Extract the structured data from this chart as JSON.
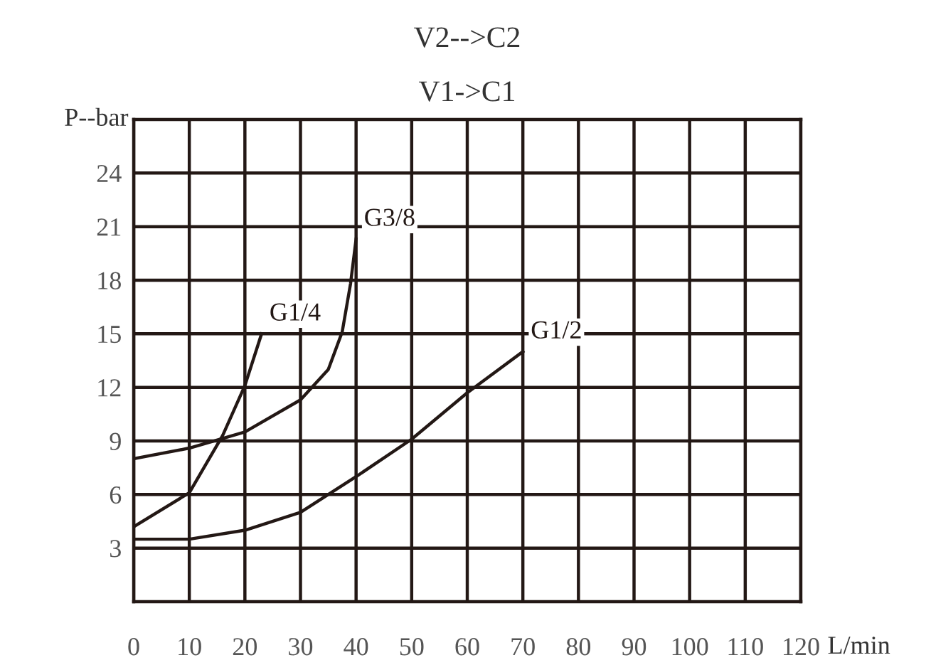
{
  "chart_data": {
    "type": "line",
    "title": "V2-->C2",
    "subtitle": "V1->C1",
    "xlabel": "L/min",
    "ylabel": "P--bar",
    "xlim": [
      0,
      120
    ],
    "xticks": [
      0,
      10,
      20,
      30,
      40,
      50,
      60,
      70,
      80,
      90,
      100,
      110,
      120
    ],
    "ylim": [
      0,
      27
    ],
    "yticks": [
      3,
      6,
      9,
      12,
      15,
      18,
      21,
      24
    ],
    "grid": true,
    "marker": "none",
    "line_style": "solid",
    "series": [
      {
        "name": "G3/8",
        "color": "#231815",
        "x": [
          0,
          10,
          20,
          30,
          35,
          37.5,
          39,
          40
        ],
        "values": [
          8.0,
          8.6,
          9.5,
          11.3,
          13.0,
          15.1,
          17.8,
          20.3
        ]
      },
      {
        "name": "G1/4",
        "color": "#231815",
        "x": [
          0,
          10,
          16,
          20,
          23
        ],
        "values": [
          4.2,
          6.1,
          9.3,
          12.1,
          15.0
        ]
      },
      {
        "name": "G1/2",
        "color": "#231815",
        "x": [
          0,
          10,
          20,
          30,
          40,
          50,
          60,
          70
        ],
        "values": [
          3.5,
          3.5,
          4.0,
          5.0,
          7.0,
          9.1,
          11.7,
          14.0
        ]
      }
    ]
  }
}
